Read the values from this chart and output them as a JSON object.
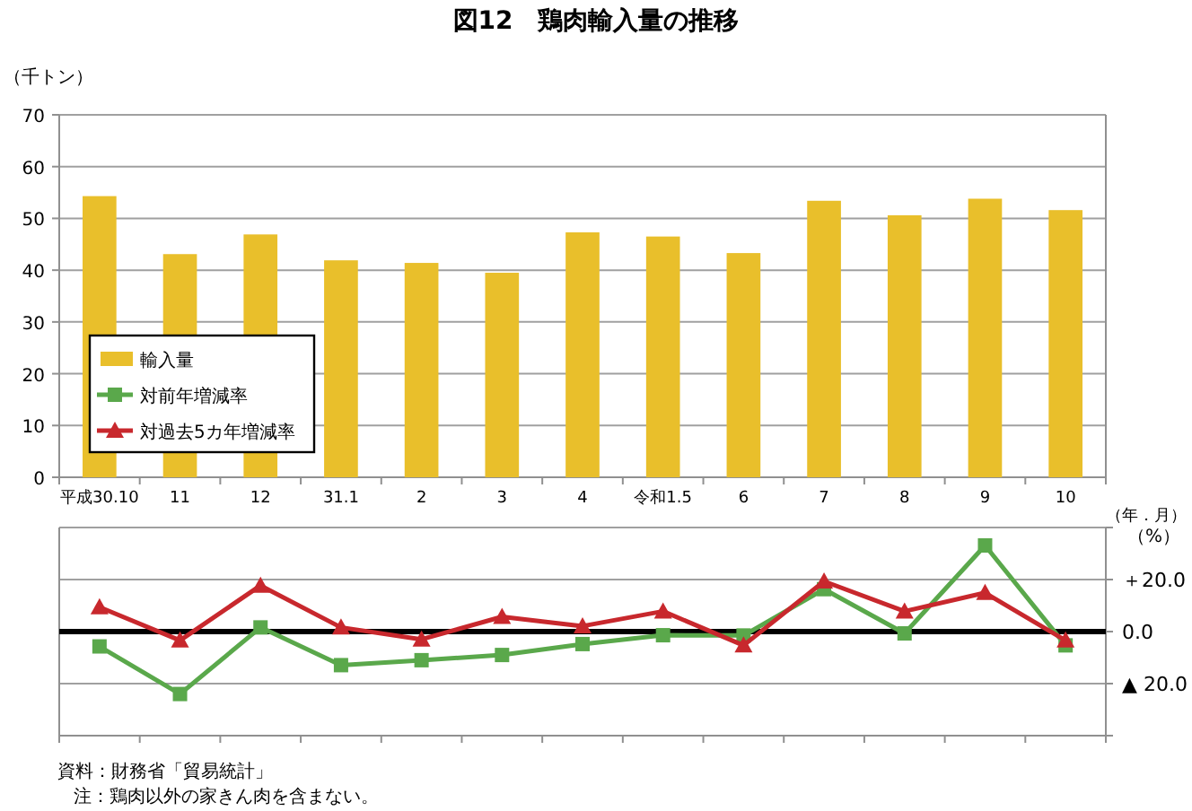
{
  "chart_data": [
    {
      "type": "bar",
      "title": "図12　鶏肉輸入量の推移",
      "ylabel": "（千トン）",
      "xlabel": "（年．月）",
      "categories": [
        "平成30.10",
        "11",
        "12",
        "31.1",
        "2",
        "3",
        "4",
        "令和1.5",
        "6",
        "7",
        "8",
        "9",
        "10"
      ],
      "series": [
        {
          "name": "輸入量",
          "color": "#e9bf2b",
          "values": [
            54.3,
            43.1,
            46.9,
            41.9,
            41.4,
            39.5,
            47.3,
            46.5,
            43.3,
            53.4,
            50.6,
            53.8,
            51.6
          ]
        }
      ],
      "ylim": [
        0,
        70
      ],
      "yticks": [
        0,
        10,
        20,
        30,
        40,
        50,
        60,
        70
      ],
      "grid": "y",
      "legend": "bottom left"
    },
    {
      "type": "line",
      "ylabel": "（%）",
      "categories": [
        null,
        null,
        null,
        null,
        null,
        null,
        null,
        null,
        null,
        null,
        null,
        null,
        null
      ],
      "series": [
        {
          "name": "対前年増減率",
          "color": "#5aa84b",
          "marker": "square",
          "values": [
            -5.7,
            -24.0,
            1.6,
            -12.9,
            -11.0,
            -9.0,
            -4.8,
            -1.4,
            -1.5,
            16.3,
            -0.7,
            33.1,
            -5.3
          ]
        },
        {
          "name": "対過去5カ年増減率",
          "color": "#c8282d",
          "marker": "triangle",
          "values": [
            9.4,
            -3.4,
            17.7,
            1.6,
            -3.0,
            5.7,
            2.1,
            7.8,
            -5.3,
            19.3,
            7.8,
            14.9,
            -3.4
          ]
        }
      ],
      "ylim": [
        -40,
        40
      ],
      "yticks": [
        {
          "value": 40,
          "label": null
        },
        {
          "value": 20,
          "label": "＋20.0"
        },
        {
          "value": 0,
          "label": "0.0"
        },
        {
          "value": -20,
          "label": "▲ 20.0"
        },
        {
          "value": -40,
          "label": null
        }
      ],
      "grid": "y",
      "tick_labels": "y",
      "ref_lines": [
        {
          "axis": "y",
          "value": 0,
          "color": "#000000"
        }
      ],
      "annotations": [
        "資料：財務省「貿易統計」",
        "注：鶏肉以外の家きん肉を含まない。"
      ]
    }
  ]
}
